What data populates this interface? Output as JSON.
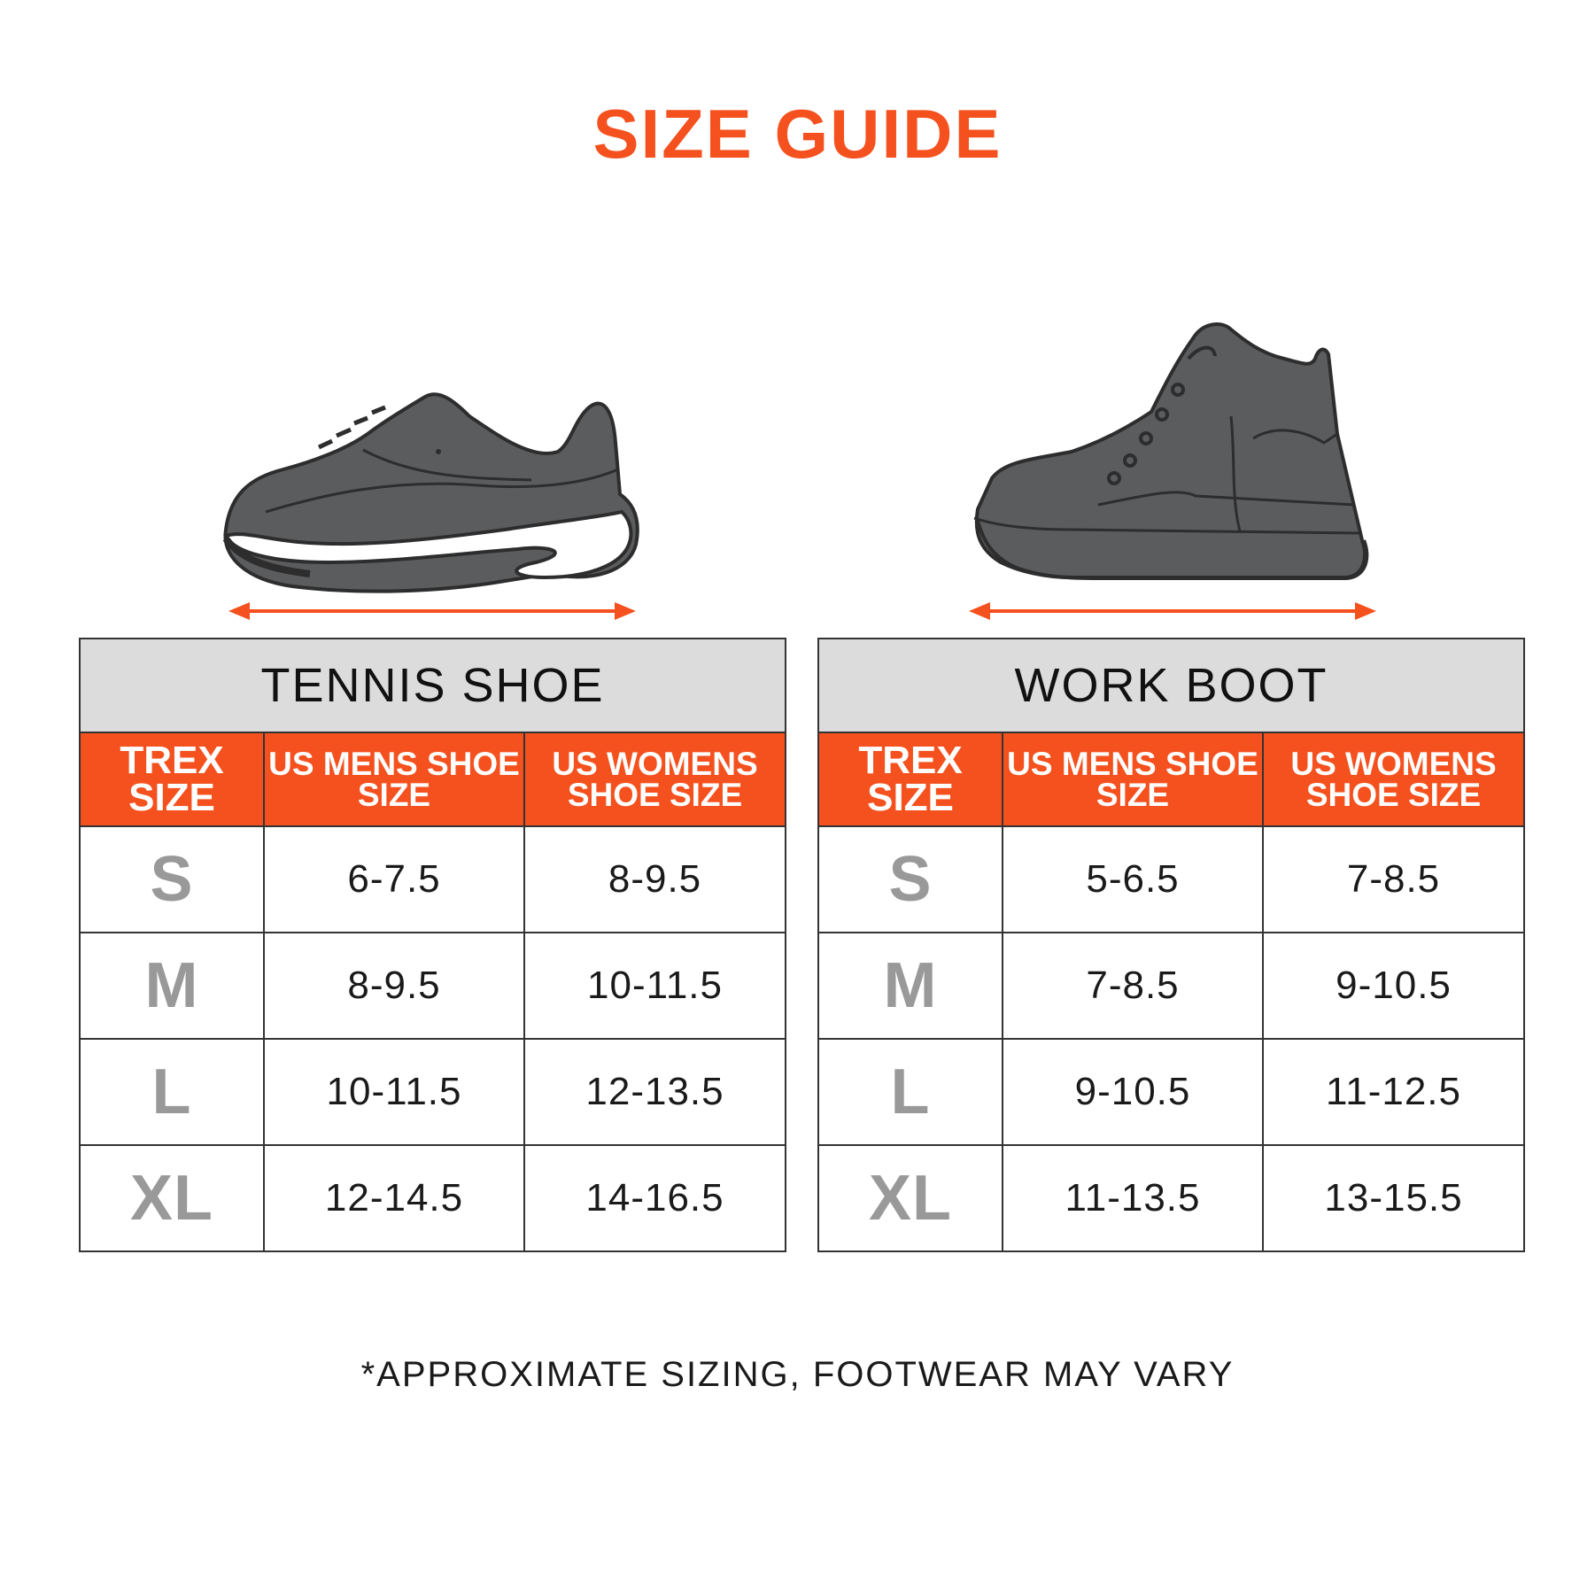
{
  "title": "SIZE GUIDE",
  "footnote": "*APPROXIMATE SIZING, FOOTWEAR MAY VARY",
  "colors": {
    "accent": "#f4511e",
    "header_gray": "#dcdcdc",
    "size_gray": "#999999",
    "shoe_fill": "#5b5c5e"
  },
  "icons": {
    "tennis": "tennis-shoe-icon",
    "boot": "work-boot-icon",
    "arrow": "double-arrow-icon"
  },
  "tables": [
    {
      "caption": "TENNIS SHOE",
      "headers": [
        "TREX SIZE",
        "US MENS SHOE SIZE",
        "US WOMENS SHOE SIZE"
      ],
      "rows": [
        [
          "S",
          "6-7.5",
          "8-9.5"
        ],
        [
          "M",
          "8-9.5",
          "10-11.5"
        ],
        [
          "L",
          "10-11.5",
          "12-13.5"
        ],
        [
          "XL",
          "12-14.5",
          "14-16.5"
        ]
      ]
    },
    {
      "caption": "WORK BOOT",
      "headers": [
        "TREX SIZE",
        "US MENS SHOE SIZE",
        "US WOMENS SHOE SIZE"
      ],
      "rows": [
        [
          "S",
          "5-6.5",
          "7-8.5"
        ],
        [
          "M",
          "7-8.5",
          "9-10.5"
        ],
        [
          "L",
          "9-10.5",
          "11-12.5"
        ],
        [
          "XL",
          "11-13.5",
          "13-15.5"
        ]
      ]
    }
  ]
}
